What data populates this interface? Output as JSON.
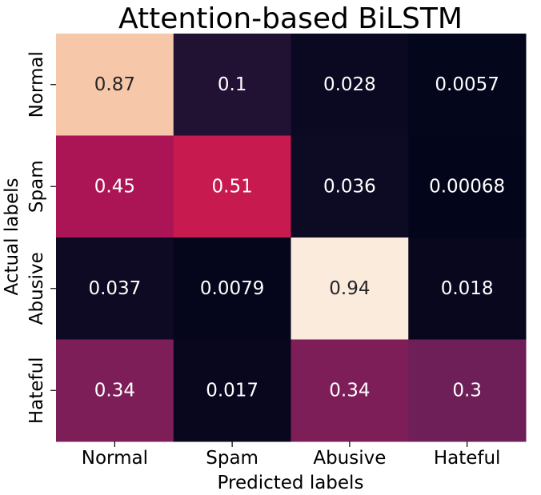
{
  "chart_data": {
    "type": "heatmap",
    "title": "Attention-based BiLSTM",
    "xlabel": "Predicted labels",
    "ylabel": "Actual labels",
    "x_categories": [
      "Normal",
      "Spam",
      "Abusive",
      "Hateful"
    ],
    "y_categories": [
      "Normal",
      "Spam",
      "Abusive",
      "Hateful"
    ],
    "values": [
      [
        0.87,
        0.1,
        0.028,
        0.0057
      ],
      [
        0.45,
        0.51,
        0.036,
        0.00068
      ],
      [
        0.037,
        0.0079,
        0.94,
        0.018
      ],
      [
        0.34,
        0.017,
        0.34,
        0.3
      ]
    ],
    "value_labels": [
      [
        "0.87",
        "0.1",
        "0.028",
        "0.0057"
      ],
      [
        "0.45",
        "0.51",
        "0.036",
        "0.00068"
      ],
      [
        "0.037",
        "0.0079",
        "0.94",
        "0.018"
      ],
      [
        "0.34",
        "0.017",
        "0.34",
        "0.3"
      ]
    ],
    "colormap": "rocket",
    "colorbar": false,
    "grid": false,
    "text_color_dark": "#262626",
    "text_color_light": "#ffffff"
  }
}
